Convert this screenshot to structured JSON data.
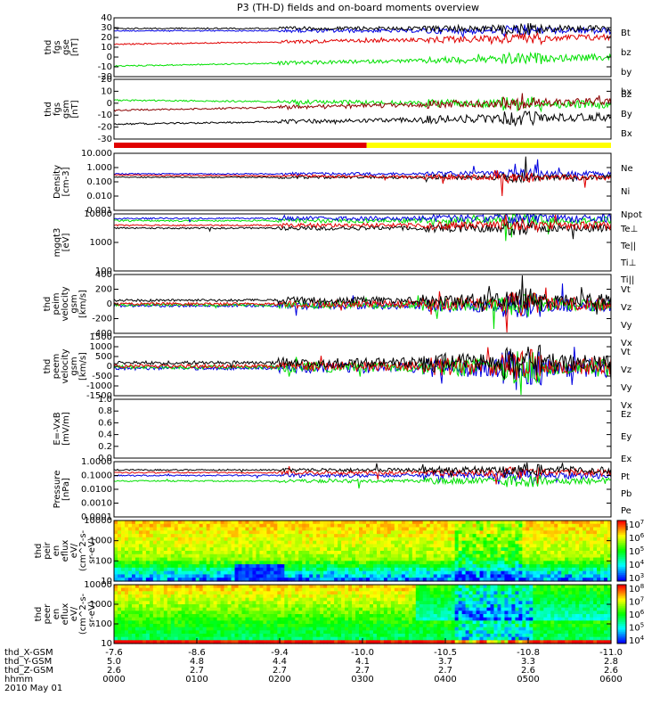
{
  "title": "P3 (TH-D) fields and on-board moments overview",
  "colors": {
    "black": "#000000",
    "red": "#e00000",
    "green": "#00e000",
    "blue": "#0000e0",
    "yellow": "#ffff00",
    "maroon": "#8b0000"
  },
  "chart_data": [
    {
      "type": "line",
      "ylabel": [
        "thd",
        "fgs",
        "gse",
        "[nT]"
      ],
      "yticks": [
        40,
        30,
        20,
        10,
        0,
        -10,
        -20
      ],
      "ylim": [
        -20,
        40
      ],
      "series": [
        {
          "name": "Bt",
          "color": "black"
        },
        {
          "name": "bz",
          "color": "red"
        },
        {
          "name": "by",
          "color": "green"
        },
        {
          "name": "bx",
          "color": "blue"
        }
      ]
    },
    {
      "type": "line",
      "ylabel": [
        "thd",
        "fgs",
        "gsm",
        "[nT]"
      ],
      "yticks": [
        20,
        10,
        0,
        -10,
        -20,
        -30
      ],
      "ylim": [
        -35,
        20
      ],
      "series": [
        {
          "name": "Bz",
          "color": "maroon"
        },
        {
          "name": "By",
          "color": "green"
        },
        {
          "name": "Bx",
          "color": "black"
        }
      ]
    },
    {
      "type": "bar",
      "ylabel": [],
      "segments": [
        {
          "color": "red",
          "from": 0.0,
          "to": 3.05
        },
        {
          "color": "yellow",
          "from": 3.05,
          "to": 6.0
        }
      ]
    },
    {
      "type": "line",
      "ylabel": [
        "Density",
        "[cm-3]"
      ],
      "yticks": [
        "10.000",
        "1.000",
        "0.100",
        "0.010",
        "0.001"
      ],
      "log": true,
      "series": [
        {
          "name": "Ne",
          "color": "red"
        },
        {
          "name": "Ni",
          "color": "black"
        },
        {
          "name": "Npot",
          "color": "blue"
        }
      ]
    },
    {
      "type": "line",
      "ylabel": [
        "mgqt3",
        "[eV]"
      ],
      "yticks": [
        "10000",
        "1000",
        "100"
      ],
      "log": true,
      "series": [
        {
          "name": "Te⊥",
          "color": "red"
        },
        {
          "name": "Te||",
          "color": "black"
        },
        {
          "name": "Ti⊥",
          "color": "blue"
        },
        {
          "name": "Ti||",
          "color": "green"
        }
      ]
    },
    {
      "type": "line",
      "ylabel": [
        "thd",
        "peim",
        "velocity",
        "gsm",
        "[km/s]"
      ],
      "yticks": [
        400,
        200,
        0,
        -200,
        -400
      ],
      "ylim": [
        -400,
        400
      ],
      "series": [
        {
          "name": "Vt",
          "color": "black"
        },
        {
          "name": "Vz",
          "color": "red"
        },
        {
          "name": "Vy",
          "color": "green"
        },
        {
          "name": "Vx",
          "color": "blue"
        }
      ]
    },
    {
      "type": "line",
      "ylabel": [
        "thd",
        "peem",
        "velocity",
        "gsm",
        "[km/s]"
      ],
      "yticks": [
        1500,
        1000,
        500,
        0,
        -500,
        -1000,
        -1500
      ],
      "ylim": [
        -1500,
        1500
      ],
      "series": [
        {
          "name": "Vt",
          "color": "black"
        },
        {
          "name": "Vz",
          "color": "red"
        },
        {
          "name": "Vy",
          "color": "green"
        },
        {
          "name": "Vx",
          "color": "blue"
        }
      ]
    },
    {
      "type": "line",
      "ylabel": [
        "E=-VxB",
        "[mV/m]"
      ],
      "yticks": [
        "1.0",
        "0.8",
        "0.6",
        "0.4",
        "0.2",
        "0.0"
      ],
      "ylim": [
        0,
        1
      ],
      "series": [
        {
          "name": "Ez",
          "color": "red"
        },
        {
          "name": "Ey",
          "color": "green"
        },
        {
          "name": "Ex",
          "color": "blue"
        }
      ]
    },
    {
      "type": "line",
      "ylabel": [
        "Pressure",
        "[nPa]"
      ],
      "yticks": [
        "1.0000",
        "0.1000",
        "0.0100",
        "0.0010",
        "0.0001"
      ],
      "log": true,
      "series": [
        {
          "name": "Pt",
          "color": "black"
        },
        {
          "name": "Pb",
          "color": "red"
        },
        {
          "name": "Pe",
          "color": "green"
        },
        {
          "name": "Pi",
          "color": "blue"
        }
      ]
    },
    {
      "type": "heatmap",
      "ylabel": [
        "thd",
        "peir",
        "en",
        "eflux",
        "eV/",
        "(cm^2-s-",
        "sr-eV)"
      ],
      "yticks": [
        "10000",
        "1000",
        "100",
        "10"
      ],
      "colorbar": [
        "10^7",
        "10^6",
        "10^5",
        "10^4",
        "10^3"
      ]
    },
    {
      "type": "heatmap",
      "ylabel": [
        "thd",
        "peer",
        "en",
        "eflux",
        "eV/",
        "(cm^2-s-",
        "sr-eV)"
      ],
      "yticks": [
        "10000",
        "1000",
        "100",
        "10"
      ],
      "colorbar": [
        "10^8",
        "10^7",
        "10^6",
        "10^5",
        "10^4"
      ]
    }
  ],
  "x_axis": {
    "rows": [
      {
        "label": "thd_X-GSM",
        "values": [
          "-7.6",
          "-8.6",
          "-9.4",
          "-10.0",
          "-10.5",
          "-10.8",
          "-11.0"
        ]
      },
      {
        "label": "thd_Y-GSM",
        "values": [
          "5.0",
          "4.8",
          "4.4",
          "4.1",
          "3.7",
          "3.3",
          "2.8"
        ]
      },
      {
        "label": "thd_Z-GSM",
        "values": [
          "2.6",
          "2.7",
          "2.7",
          "2.7",
          "2.7",
          "2.6",
          "2.6"
        ]
      },
      {
        "label": "hhmm",
        "values": [
          "0000",
          "0100",
          "0200",
          "0300",
          "0400",
          "0500",
          "0600"
        ]
      }
    ],
    "date": "2010 May 01"
  }
}
